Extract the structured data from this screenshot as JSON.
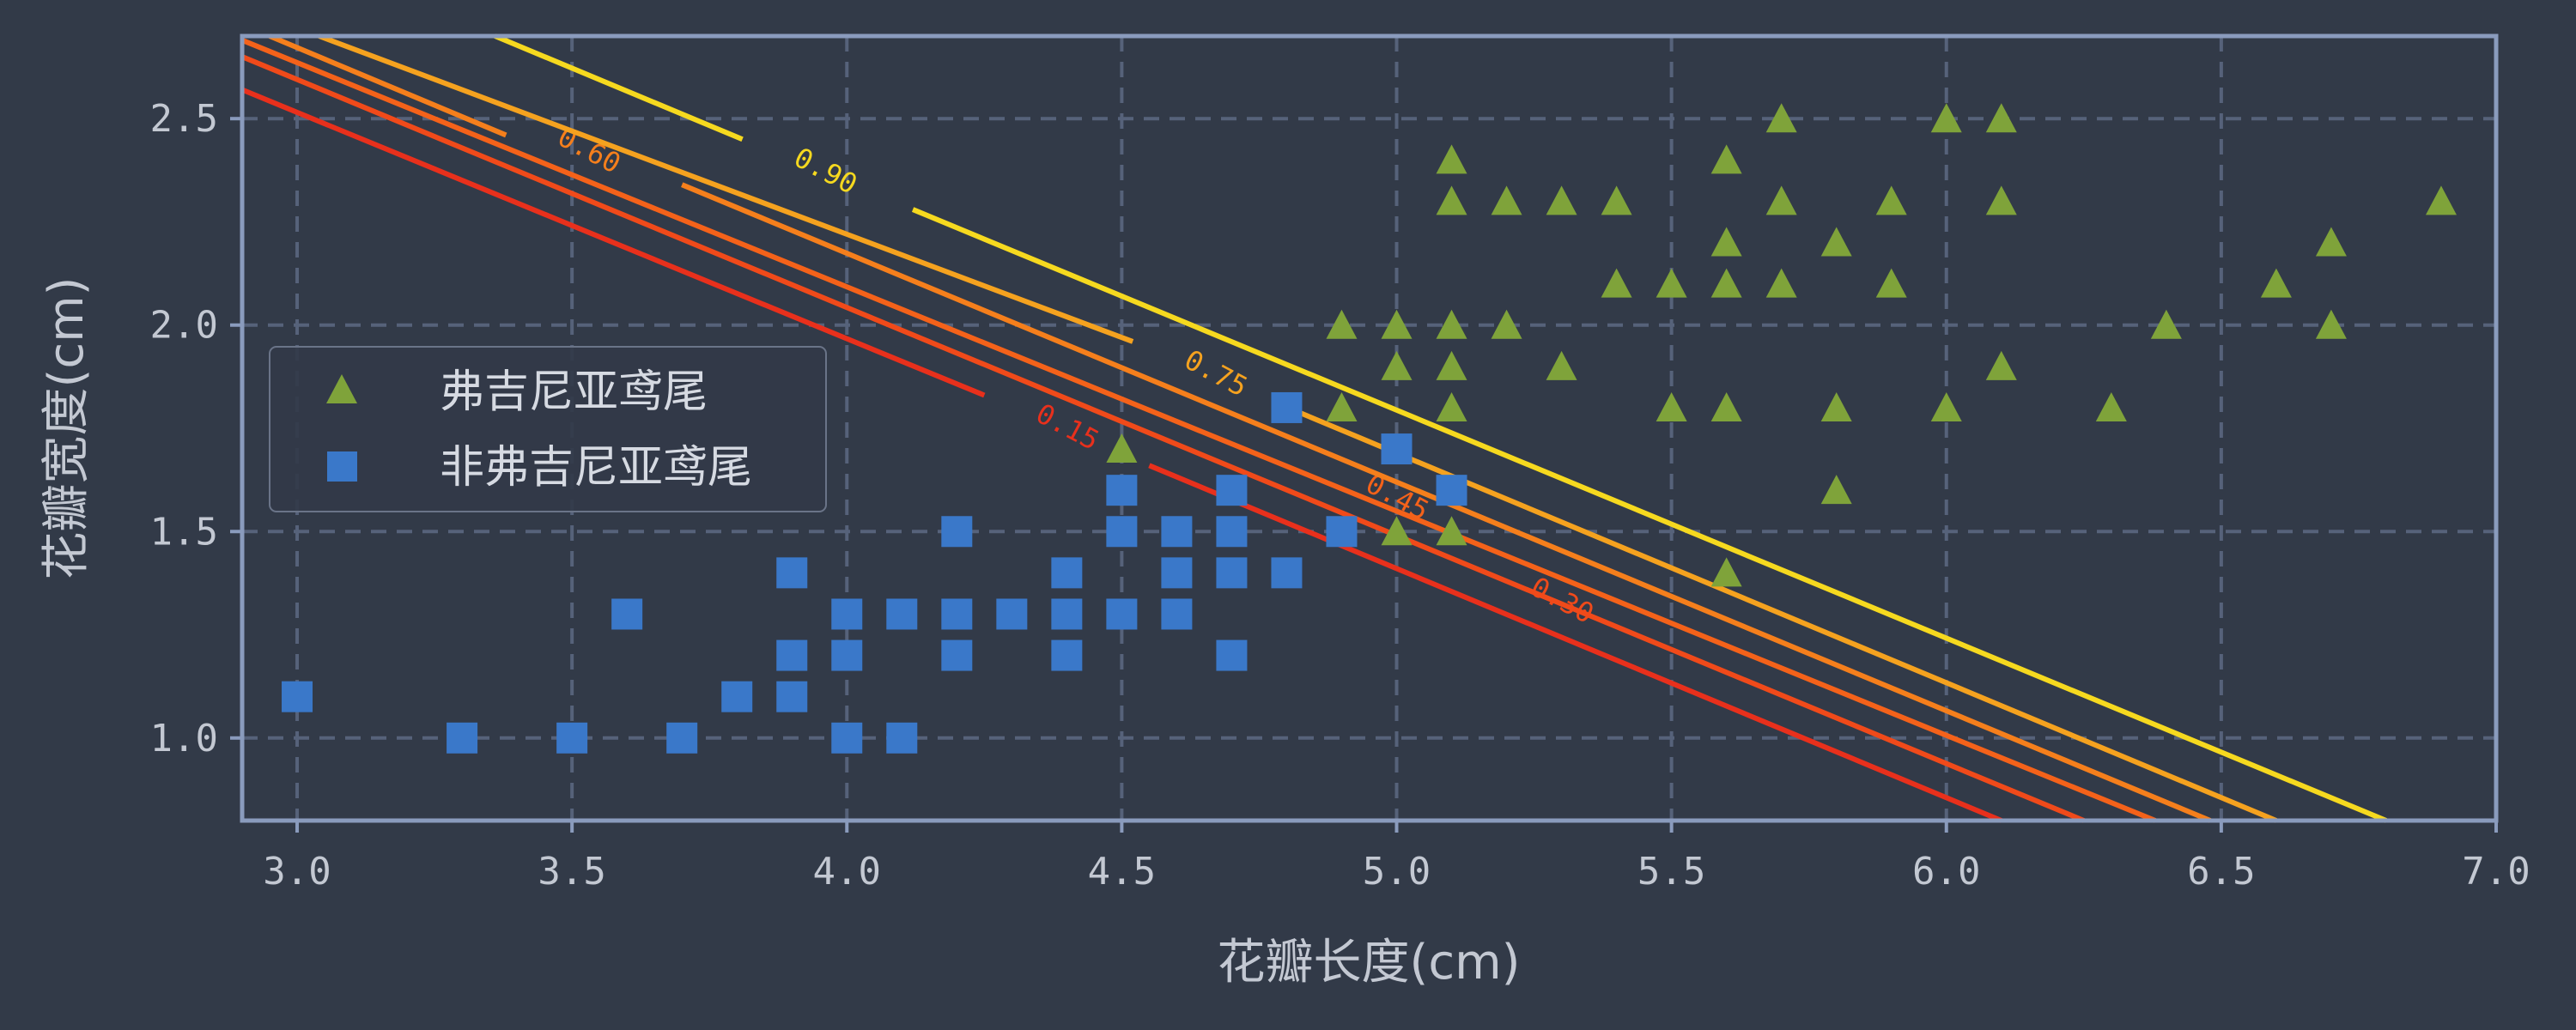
{
  "chart_data": {
    "type": "scatter",
    "xlabel": "花瓣长度(cm)",
    "ylabel": "花瓣宽度(cm)",
    "xlim": [
      2.9,
      7.0
    ],
    "ylim": [
      0.8,
      2.7
    ],
    "x_ticks": [
      "3.0",
      "3.5",
      "4.0",
      "4.5",
      "5.0",
      "5.5",
      "6.0",
      "6.5",
      "7.0"
    ],
    "x_tick_values": [
      3.0,
      3.5,
      4.0,
      4.5,
      5.0,
      5.5,
      6.0,
      6.5,
      7.0
    ],
    "y_ticks": [
      "1.0",
      "1.5",
      "2.0",
      "2.5"
    ],
    "y_tick_values": [
      1.0,
      1.5,
      2.0,
      2.5
    ],
    "grid": true,
    "legend_position": "center-left",
    "series": [
      {
        "name": "弗吉尼亚鸢尾",
        "marker": "triangle",
        "color": "#7fa33a",
        "points": [
          [
            4.5,
            1.7
          ],
          [
            4.8,
            1.8
          ],
          [
            4.9,
            1.8
          ],
          [
            4.9,
            2.0
          ],
          [
            5.0,
            1.5
          ],
          [
            5.0,
            1.9
          ],
          [
            5.0,
            2.0
          ],
          [
            5.1,
            1.5
          ],
          [
            5.1,
            1.8
          ],
          [
            5.1,
            1.9
          ],
          [
            5.1,
            2.0
          ],
          [
            5.1,
            2.3
          ],
          [
            5.1,
            2.4
          ],
          [
            5.2,
            2.0
          ],
          [
            5.2,
            2.3
          ],
          [
            5.3,
            1.9
          ],
          [
            5.3,
            2.3
          ],
          [
            5.4,
            2.1
          ],
          [
            5.4,
            2.3
          ],
          [
            5.5,
            1.8
          ],
          [
            5.5,
            2.1
          ],
          [
            5.6,
            1.4
          ],
          [
            5.6,
            1.8
          ],
          [
            5.6,
            2.1
          ],
          [
            5.6,
            2.2
          ],
          [
            5.6,
            2.4
          ],
          [
            5.7,
            2.1
          ],
          [
            5.7,
            2.3
          ],
          [
            5.7,
            2.5
          ],
          [
            5.8,
            1.6
          ],
          [
            5.8,
            1.8
          ],
          [
            5.8,
            2.2
          ],
          [
            5.9,
            2.1
          ],
          [
            5.9,
            2.3
          ],
          [
            6.0,
            1.8
          ],
          [
            6.0,
            2.5
          ],
          [
            6.1,
            1.9
          ],
          [
            6.1,
            2.3
          ],
          [
            6.1,
            2.5
          ],
          [
            6.3,
            1.8
          ],
          [
            6.4,
            2.0
          ],
          [
            6.6,
            2.1
          ],
          [
            6.7,
            2.0
          ],
          [
            6.7,
            2.2
          ],
          [
            6.9,
            2.3
          ]
        ]
      },
      {
        "name": "非弗吉尼亚鸢尾",
        "marker": "square",
        "color": "#3a78c9",
        "points": [
          [
            3.0,
            1.1
          ],
          [
            3.3,
            1.0
          ],
          [
            3.5,
            1.0
          ],
          [
            3.6,
            1.3
          ],
          [
            3.7,
            1.0
          ],
          [
            3.8,
            1.1
          ],
          [
            3.9,
            1.1
          ],
          [
            3.9,
            1.2
          ],
          [
            3.9,
            1.4
          ],
          [
            4.0,
            1.0
          ],
          [
            4.0,
            1.2
          ],
          [
            4.0,
            1.3
          ],
          [
            4.1,
            1.0
          ],
          [
            4.1,
            1.3
          ],
          [
            4.2,
            1.2
          ],
          [
            4.2,
            1.3
          ],
          [
            4.2,
            1.5
          ],
          [
            4.3,
            1.3
          ],
          [
            4.4,
            1.2
          ],
          [
            4.4,
            1.3
          ],
          [
            4.4,
            1.4
          ],
          [
            4.5,
            1.3
          ],
          [
            4.5,
            1.5
          ],
          [
            4.5,
            1.6
          ],
          [
            4.6,
            1.3
          ],
          [
            4.6,
            1.4
          ],
          [
            4.6,
            1.5
          ],
          [
            4.7,
            1.2
          ],
          [
            4.7,
            1.4
          ],
          [
            4.7,
            1.5
          ],
          [
            4.7,
            1.6
          ],
          [
            4.8,
            1.4
          ],
          [
            4.8,
            1.8
          ],
          [
            4.9,
            1.5
          ],
          [
            5.0,
            1.7
          ],
          [
            5.1,
            1.6
          ]
        ]
      }
    ],
    "contours": [
      {
        "level": "0.15",
        "color": "#e8301c",
        "segments": [
          [
            [
              2.9,
              2.57
            ],
            [
              4.25,
              1.83
            ]
          ],
          [
            [
              4.55,
              1.66
            ],
            [
              6.1,
              0.8
            ]
          ]
        ],
        "label_at": [
          4.4,
          1.75
        ],
        "label_rot": 28
      },
      {
        "level": "0.30",
        "color": "#f04a1a",
        "segments": [
          [
            [
              2.9,
              2.65
            ],
            [
              6.25,
              0.8
            ]
          ]
        ],
        "label_at": [
          5.3,
          1.33
        ],
        "label_rot": 28
      },
      {
        "level": "0.45",
        "color": "#f4621a",
        "segments": [
          [
            [
              2.9,
              2.69
            ],
            [
              6.38,
              0.8
            ]
          ]
        ],
        "label_at": [
          5.0,
          1.58
        ],
        "label_rot": 28
      },
      {
        "level": "0.60",
        "color": "#f57f1c",
        "segments": [
          [
            [
              2.95,
              2.7
            ],
            [
              3.38,
              2.46
            ]
          ],
          [
            [
              3.7,
              2.34
            ],
            [
              6.48,
              0.8
            ]
          ]
        ],
        "label_at": [
          3.53,
          2.42
        ],
        "label_rot": 28
      },
      {
        "level": "0.75",
        "color": "#f5a21f",
        "segments": [
          [
            [
              3.04,
              2.7
            ],
            [
              4.52,
              1.96
            ]
          ],
          [
            [
              4.82,
              1.79
            ],
            [
              6.6,
              0.8
            ]
          ]
        ],
        "label_at": [
          4.67,
          1.88
        ],
        "label_rot": 28
      },
      {
        "level": "0.90",
        "color": "#f6d91f",
        "segments": [
          [
            [
              3.36,
              2.7
            ],
            [
              3.81,
              2.45
            ]
          ],
          [
            [
              4.12,
              2.28
            ],
            [
              6.8,
              0.8
            ]
          ]
        ],
        "label_at": [
          3.96,
          2.37
        ],
        "label_rot": 28
      }
    ]
  }
}
